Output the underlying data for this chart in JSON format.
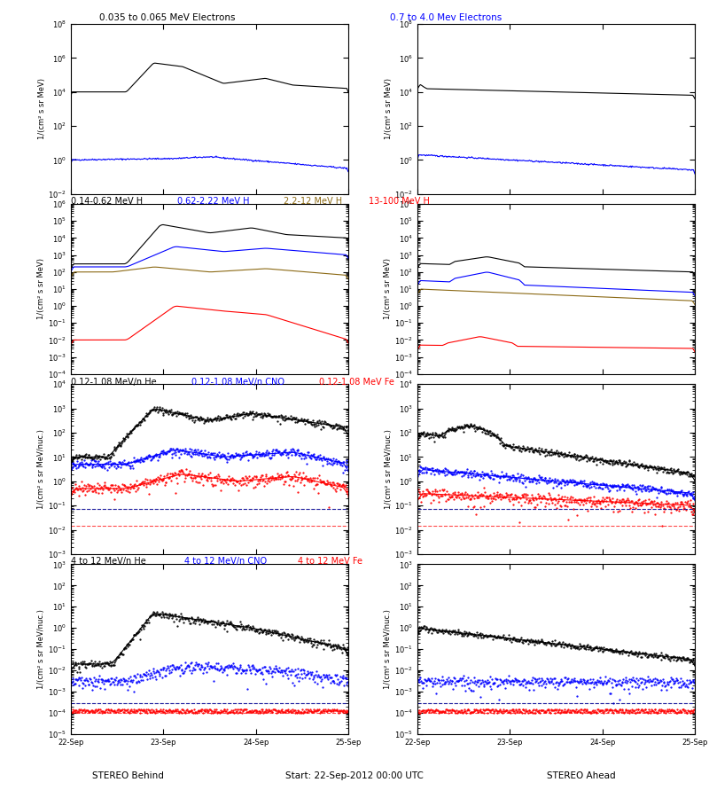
{
  "title_top": "0.035 to 0.065 MeV Electrons",
  "title_top_right": "0.7 to 4.0 Mev Electrons",
  "title_row2": [
    "0.14-0.62 MeV H",
    "0.62-2.22 MeV H",
    "2.2-12 MeV H",
    "13-100 MeV H"
  ],
  "title_row2_colors": [
    "black",
    "blue",
    "#8B6914",
    "red"
  ],
  "title_row3": [
    "0.12-1.08 MeV/n He",
    "0.12-1.08 MeV/n CNO",
    "0.12-1.08 MeV Fe"
  ],
  "title_row3_colors": [
    "black",
    "blue",
    "red"
  ],
  "title_row4": [
    "4 to 12 MeV/n He",
    "4 to 12 MeV/n CNO",
    "4 to 12 MeV Fe"
  ],
  "title_row4_colors": [
    "black",
    "blue",
    "red"
  ],
  "xlabel_left": "STEREO Behind",
  "xlabel_center": "Start: 22-Sep-2012 00:00 UTC",
  "xlabel_right": "STEREO Ahead",
  "xtick_labels": [
    "22-Sep",
    "23-Sep",
    "24-Sep",
    "25-Sep"
  ],
  "ylabel_electrons": "1/(cm² s sr MeV)",
  "ylabel_H": "1/(cm² s sr MeV)",
  "ylabel_heavy": "1/(cm² s sr MeV/nuc.)",
  "background_color": "white",
  "num_points": 400
}
